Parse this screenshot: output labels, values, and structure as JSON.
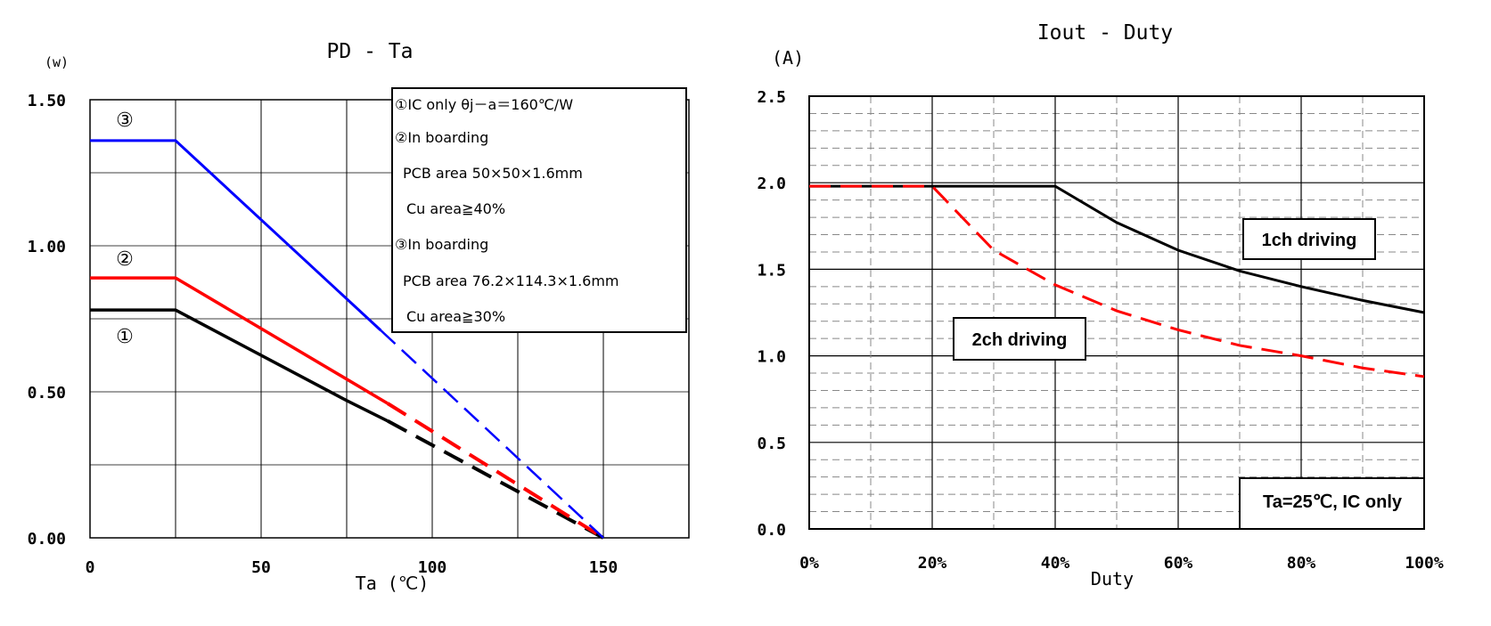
{
  "chart_data": [
    {
      "type": "line",
      "title": "PD - Ta",
      "ylabel": "(w)",
      "xlabel": "Ta (℃)",
      "xlim": [
        0,
        175
      ],
      "ylim": [
        0,
        1.5
      ],
      "x_ticks": [
        0,
        50,
        100,
        150
      ],
      "y_ticks": [
        "0.00",
        "0.50",
        "1.00",
        "1.50"
      ],
      "grid": true,
      "legend_position": "top-right",
      "legend_lines": [
        "①IC only θj－a＝160℃/W",
        "②In boarding",
        "PCB area 50×50×1.6mm",
        "Cu area≧40%",
        "③In boarding",
        "PCB area 76.2×114.3×1.6mm",
        "Cu area≧30%"
      ],
      "series": [
        {
          "label": "①",
          "color": "#000000",
          "solid_until": 87,
          "points": [
            [
              0,
              0.78
            ],
            [
              25,
              0.78
            ],
            [
              75,
              0.47
            ],
            [
              87,
              0.4
            ],
            [
              150,
              0.0
            ]
          ]
        },
        {
          "label": "②",
          "color": "#ff0000",
          "solid_until": 87,
          "points": [
            [
              0,
              0.89
            ],
            [
              25,
              0.89
            ],
            [
              87,
              0.46
            ],
            [
              150,
              0.0
            ]
          ]
        },
        {
          "label": "③",
          "color": "#0000ff",
          "solid_until": 85,
          "points": [
            [
              0,
              1.36
            ],
            [
              25,
              1.36
            ],
            [
              85,
              0.71
            ],
            [
              150,
              0.0
            ]
          ]
        }
      ]
    },
    {
      "type": "line",
      "title": "Iout - Duty",
      "ylabel": "(A)",
      "xlabel": "Duty",
      "xlim": [
        0,
        100
      ],
      "ylim": [
        0,
        2.5
      ],
      "x_ticks": [
        "0%",
        "20%",
        "40%",
        "60%",
        "80%",
        "100%"
      ],
      "y_ticks": [
        "0.0",
        "0.5",
        "1.0",
        "1.5",
        "2.0",
        "2.5"
      ],
      "grid": true,
      "annotation": "Ta=25℃, IC only",
      "series": [
        {
          "name": "1ch driving",
          "color": "#000000",
          "style": "solid",
          "points": [
            [
              0,
              1.98
            ],
            [
              40,
              1.98
            ],
            [
              50,
              1.77
            ],
            [
              60,
              1.61
            ],
            [
              70,
              1.49
            ],
            [
              80,
              1.4
            ],
            [
              90,
              1.32
            ],
            [
              100,
              1.25
            ]
          ]
        },
        {
          "name": "2ch driving",
          "color": "#ff0000",
          "style": "dashed",
          "points": [
            [
              0,
              1.98
            ],
            [
              20,
              1.98
            ],
            [
              30,
              1.61
            ],
            [
              40,
              1.41
            ],
            [
              50,
              1.26
            ],
            [
              60,
              1.15
            ],
            [
              70,
              1.06
            ],
            [
              80,
              1.0
            ],
            [
              90,
              0.93
            ],
            [
              100,
              0.88
            ]
          ]
        }
      ]
    }
  ]
}
